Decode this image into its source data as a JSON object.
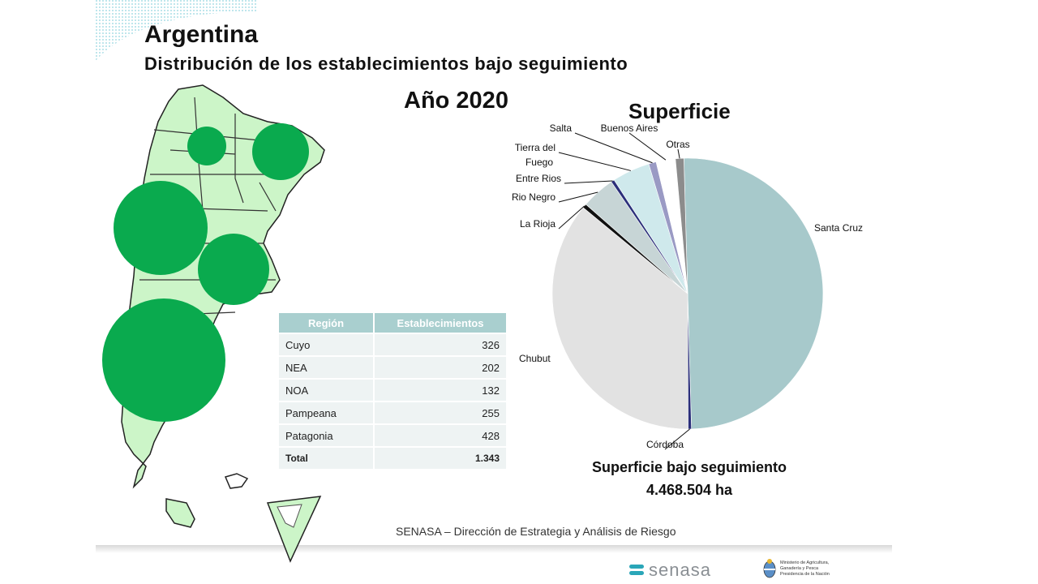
{
  "header": {
    "title": "Argentina",
    "subtitle": "Distribución  de los establecimientos bajo seguimiento",
    "year": "Año 2020"
  },
  "map": {
    "land_color": "#ccf5c8",
    "bubble_color": "#0aaa4e",
    "bubbles": [
      {
        "region": "Cuyo",
        "value": 326
      },
      {
        "region": "NEA",
        "value": 202
      },
      {
        "region": "NOA",
        "value": 132
      },
      {
        "region": "Pampeana",
        "value": 255
      },
      {
        "region": "Patagonia",
        "value": 428
      }
    ]
  },
  "table": {
    "headers": [
      "Región",
      "Establecimientos"
    ],
    "rows": [
      {
        "region": "Cuyo",
        "value": "326"
      },
      {
        "region": "NEA",
        "value": "202"
      },
      {
        "region": "NOA",
        "value": "132"
      },
      {
        "region": "Pampeana",
        "value": "255"
      },
      {
        "region": "Patagonia",
        "value": "428"
      }
    ],
    "total_label": "Total",
    "total_value": "1.343"
  },
  "chart_data": {
    "type": "pie",
    "title": "Superficie",
    "slices": [
      {
        "label": "Santa Cruz",
        "value": 50.0,
        "color": "#a7c9cb"
      },
      {
        "label": "Córdoba",
        "value": 0.4,
        "color": "#2b2f7a"
      },
      {
        "label": "Chubut",
        "value": 36.0,
        "color": "#e2e2e2"
      },
      {
        "label": "La Rioja",
        "value": 0.5,
        "color": "#111111"
      },
      {
        "label": "Rio Negro",
        "value": 4.0,
        "color": "#c7d5d6"
      },
      {
        "label": "Entre Rios",
        "value": 0.4,
        "color": "#2b2f7a"
      },
      {
        "label": "Tierra del Fuego",
        "value": 4.5,
        "color": "#cfe9ec"
      },
      {
        "label": "Salta",
        "value": 0.9,
        "color": "#9a9ac4"
      },
      {
        "label": "Buenos Aires",
        "value": 2.3,
        "color": "#ffffff"
      },
      {
        "label": "Otras",
        "value": 1.0,
        "color": "#8c8c8c"
      }
    ]
  },
  "summary": {
    "label": "Superficie bajo seguimiento",
    "value": "4.468.504 ha"
  },
  "footer": "SENASA – Dirección de Estrategia  y Análisis de Riesgo",
  "logos": {
    "senasa": "senasa",
    "ministry": [
      "Ministerio de Agricultura,",
      "Ganadería y Pesca",
      "Presidencia de la Nación"
    ]
  }
}
